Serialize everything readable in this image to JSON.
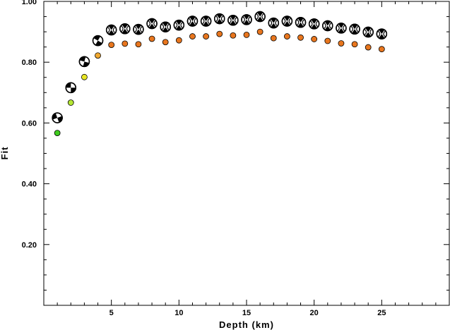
{
  "chart_data": {
    "type": "scatter",
    "title": "",
    "xlabel": "Depth (km)",
    "ylabel": "Fit",
    "xlim": [
      0,
      30
    ],
    "ylim": [
      0.0,
      1.0
    ],
    "x_ticks": [
      5,
      10,
      15,
      20,
      25
    ],
    "x_tick_labels": [
      "5",
      "10",
      "15",
      "20",
      "25"
    ],
    "y_ticks": [
      0.2,
      0.4,
      0.6,
      0.8,
      1.0
    ],
    "y_tick_labels": [
      "0.20",
      "0.40",
      "0.60",
      "0.80",
      "1.00"
    ],
    "grid": false,
    "series": [
      {
        "marker": "focal-mechanism",
        "x": [
          1,
          2,
          3,
          4,
          5,
          6,
          7,
          8,
          9,
          10,
          11,
          12,
          13,
          14,
          15,
          16,
          17,
          18,
          19,
          20,
          21,
          22,
          23,
          24,
          25
        ],
        "y": [
          0.617,
          0.716,
          0.802,
          0.871,
          0.906,
          0.91,
          0.908,
          0.927,
          0.916,
          0.922,
          0.935,
          0.935,
          0.943,
          0.938,
          0.94,
          0.95,
          0.929,
          0.935,
          0.931,
          0.926,
          0.92,
          0.912,
          0.909,
          0.899,
          0.893
        ]
      },
      {
        "marker": "circle",
        "x": [
          1,
          2,
          3,
          4,
          5,
          6,
          7,
          8,
          9,
          10,
          11,
          12,
          13,
          14,
          15,
          16,
          17,
          18,
          19,
          20,
          21,
          22,
          23,
          24,
          25
        ],
        "y": [
          0.567,
          0.667,
          0.751,
          0.822,
          0.857,
          0.861,
          0.859,
          0.877,
          0.866,
          0.872,
          0.885,
          0.885,
          0.893,
          0.888,
          0.89,
          0.9,
          0.879,
          0.885,
          0.881,
          0.876,
          0.87,
          0.862,
          0.859,
          0.849,
          0.843
        ],
        "colors": [
          "#3fcc1e",
          "#b4e634",
          "#e8e625",
          "#f0a830",
          "#e8761e",
          "#e8761e",
          "#e8761e",
          "#e8761e",
          "#e8761e",
          "#e8761e",
          "#e8761e",
          "#e8761e",
          "#e8761e",
          "#e8761e",
          "#e8761e",
          "#e8761e",
          "#e8761e",
          "#e8761e",
          "#e8761e",
          "#e8761e",
          "#e8761e",
          "#e8761e",
          "#e8761e",
          "#e8761e",
          "#e8761e"
        ]
      }
    ]
  }
}
